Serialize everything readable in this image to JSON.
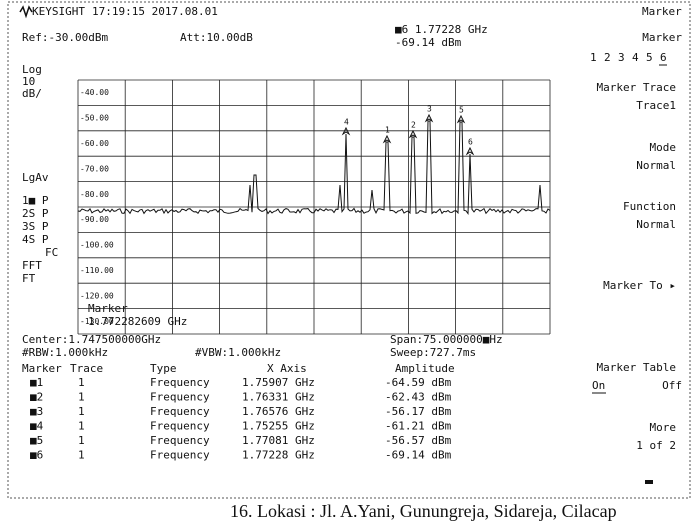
{
  "header": {
    "brand": "KEYSIGHT",
    "time": "17:19:15 2017.08.01"
  },
  "ref": "Ref:-30.00dBm",
  "att": "Att:10.00dB",
  "readout": {
    "freq": "■6 1.77228 GHz",
    "amp": "-69.14 dBm"
  },
  "left_labels": [
    "Log",
    "10",
    "dB/",
    "LgAv",
    "1■ P",
    "2S P",
    "3S P",
    "4S P",
    "FC",
    "FFT",
    "FT"
  ],
  "y_labels": [
    "-40.00",
    "-50.00",
    "-60.00",
    "-70.00",
    "-80.00",
    "-90.00",
    "-100.00",
    "-110.00",
    "-120.00",
    "-130.00"
  ],
  "marker_overlay": [
    "Marker",
    "1.772282609 GHz"
  ],
  "peak_labels": [
    "1",
    "2",
    "3",
    "4",
    "5",
    "6"
  ],
  "center": "Center:1.747500000GHz",
  "rbw": "#RBW:1.000kHz",
  "vbw": "#VBW:1.000kHz",
  "span": "Span:75.000000■Hz",
  "sweep": "Sweep:727.7ms",
  "table": {
    "headers": [
      "Marker",
      "Trace",
      "Type",
      "X Axis",
      "Amplitude"
    ],
    "rows": [
      [
        "■1",
        "1",
        "Frequency",
        "1.75907 GHz",
        "-64.59 dBm"
      ],
      [
        "■2",
        "1",
        "Frequency",
        "1.76331 GHz",
        "-62.43 dBm"
      ],
      [
        "■3",
        "1",
        "Frequency",
        "1.76576 GHz",
        "-56.17 dBm"
      ],
      [
        "■4",
        "1",
        "Frequency",
        "1.75255 GHz",
        "-61.21 dBm"
      ],
      [
        "■5",
        "1",
        "Frequency",
        "1.77081 GHz",
        "-56.57 dBm"
      ],
      [
        "■6",
        "1",
        "Frequency",
        "1.77228 GHz",
        "-69.14 dBm"
      ]
    ]
  },
  "softkeys": {
    "menu": "Marker",
    "title": "Marker",
    "numbers": [
      "1",
      "2",
      "3",
      "4",
      "5",
      "6"
    ],
    "items": [
      [
        "Marker Trace",
        "Trace1"
      ],
      [
        "Mode",
        "Normal"
      ],
      [
        "Function",
        "Normal"
      ],
      [
        "Marker To ▸",
        ""
      ],
      [
        "Marker Table",
        ""
      ],
      [
        "More",
        "1 of 2"
      ]
    ],
    "on": "On",
    "off": "Off"
  },
  "caption": "16.   Lokasi : Jl. A.Yani, Gunungreja, Sidareja, Cilacap"
}
